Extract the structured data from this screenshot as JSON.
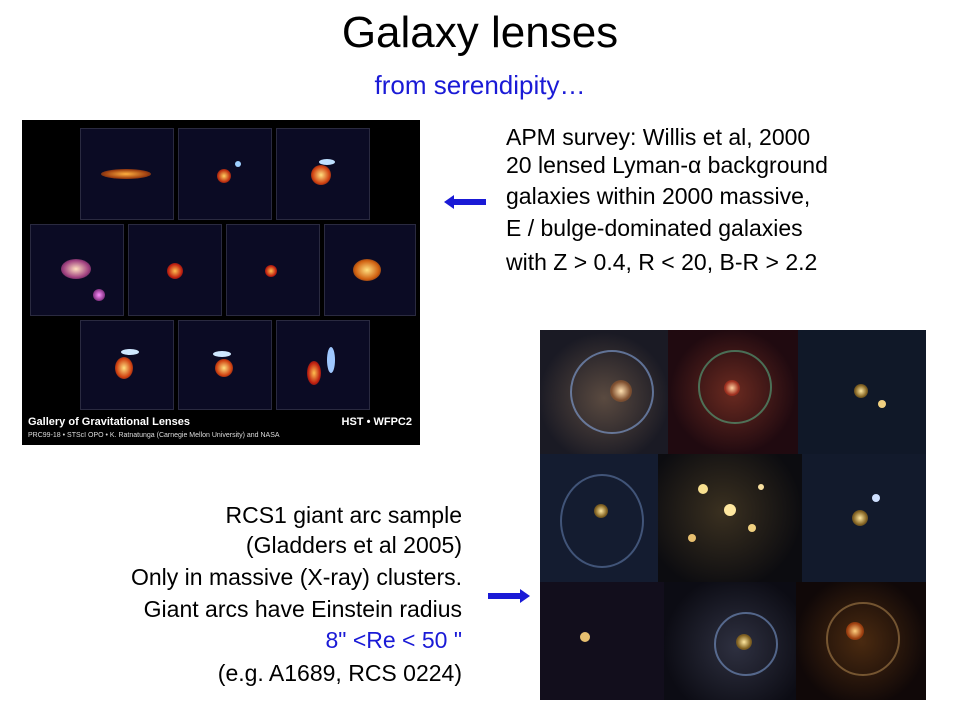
{
  "title": "Galaxy lenses",
  "subtitle": "from serendipity…",
  "apm": {
    "lines": [
      "APM survey: Willis et al, 2000",
      "20 lensed Lyman-α background",
      "galaxies within 2000 massive,",
      "E / bulge-dominated galaxies",
      "with  Z > 0.4, R < 20,  B-R > 2.2"
    ]
  },
  "rcs": {
    "lines": [
      "RCS1 giant arc sample",
      "(Gladders et al 2005)",
      "Only in massive (X-ray) clusters.",
      "Giant arcs have Einstein radius",
      "8\" <Re < 50 \"",
      "(e.g. A1689, RCS 0224)"
    ]
  },
  "gallery": {
    "caption": "Gallery of Gravitational Lenses",
    "credit": "PRC99-18 • STScI OPO • K. Ratnatunga (Carnegie Mellon University) and NASA",
    "instrument": "HST • WFPC2"
  },
  "colors": {
    "accent_blue": "#1a1ad6",
    "arrow_blue": "#1a1ad6"
  },
  "icons": {
    "left_arrow": "arrow-left-icon",
    "right_arrow": "arrow-right-icon"
  }
}
